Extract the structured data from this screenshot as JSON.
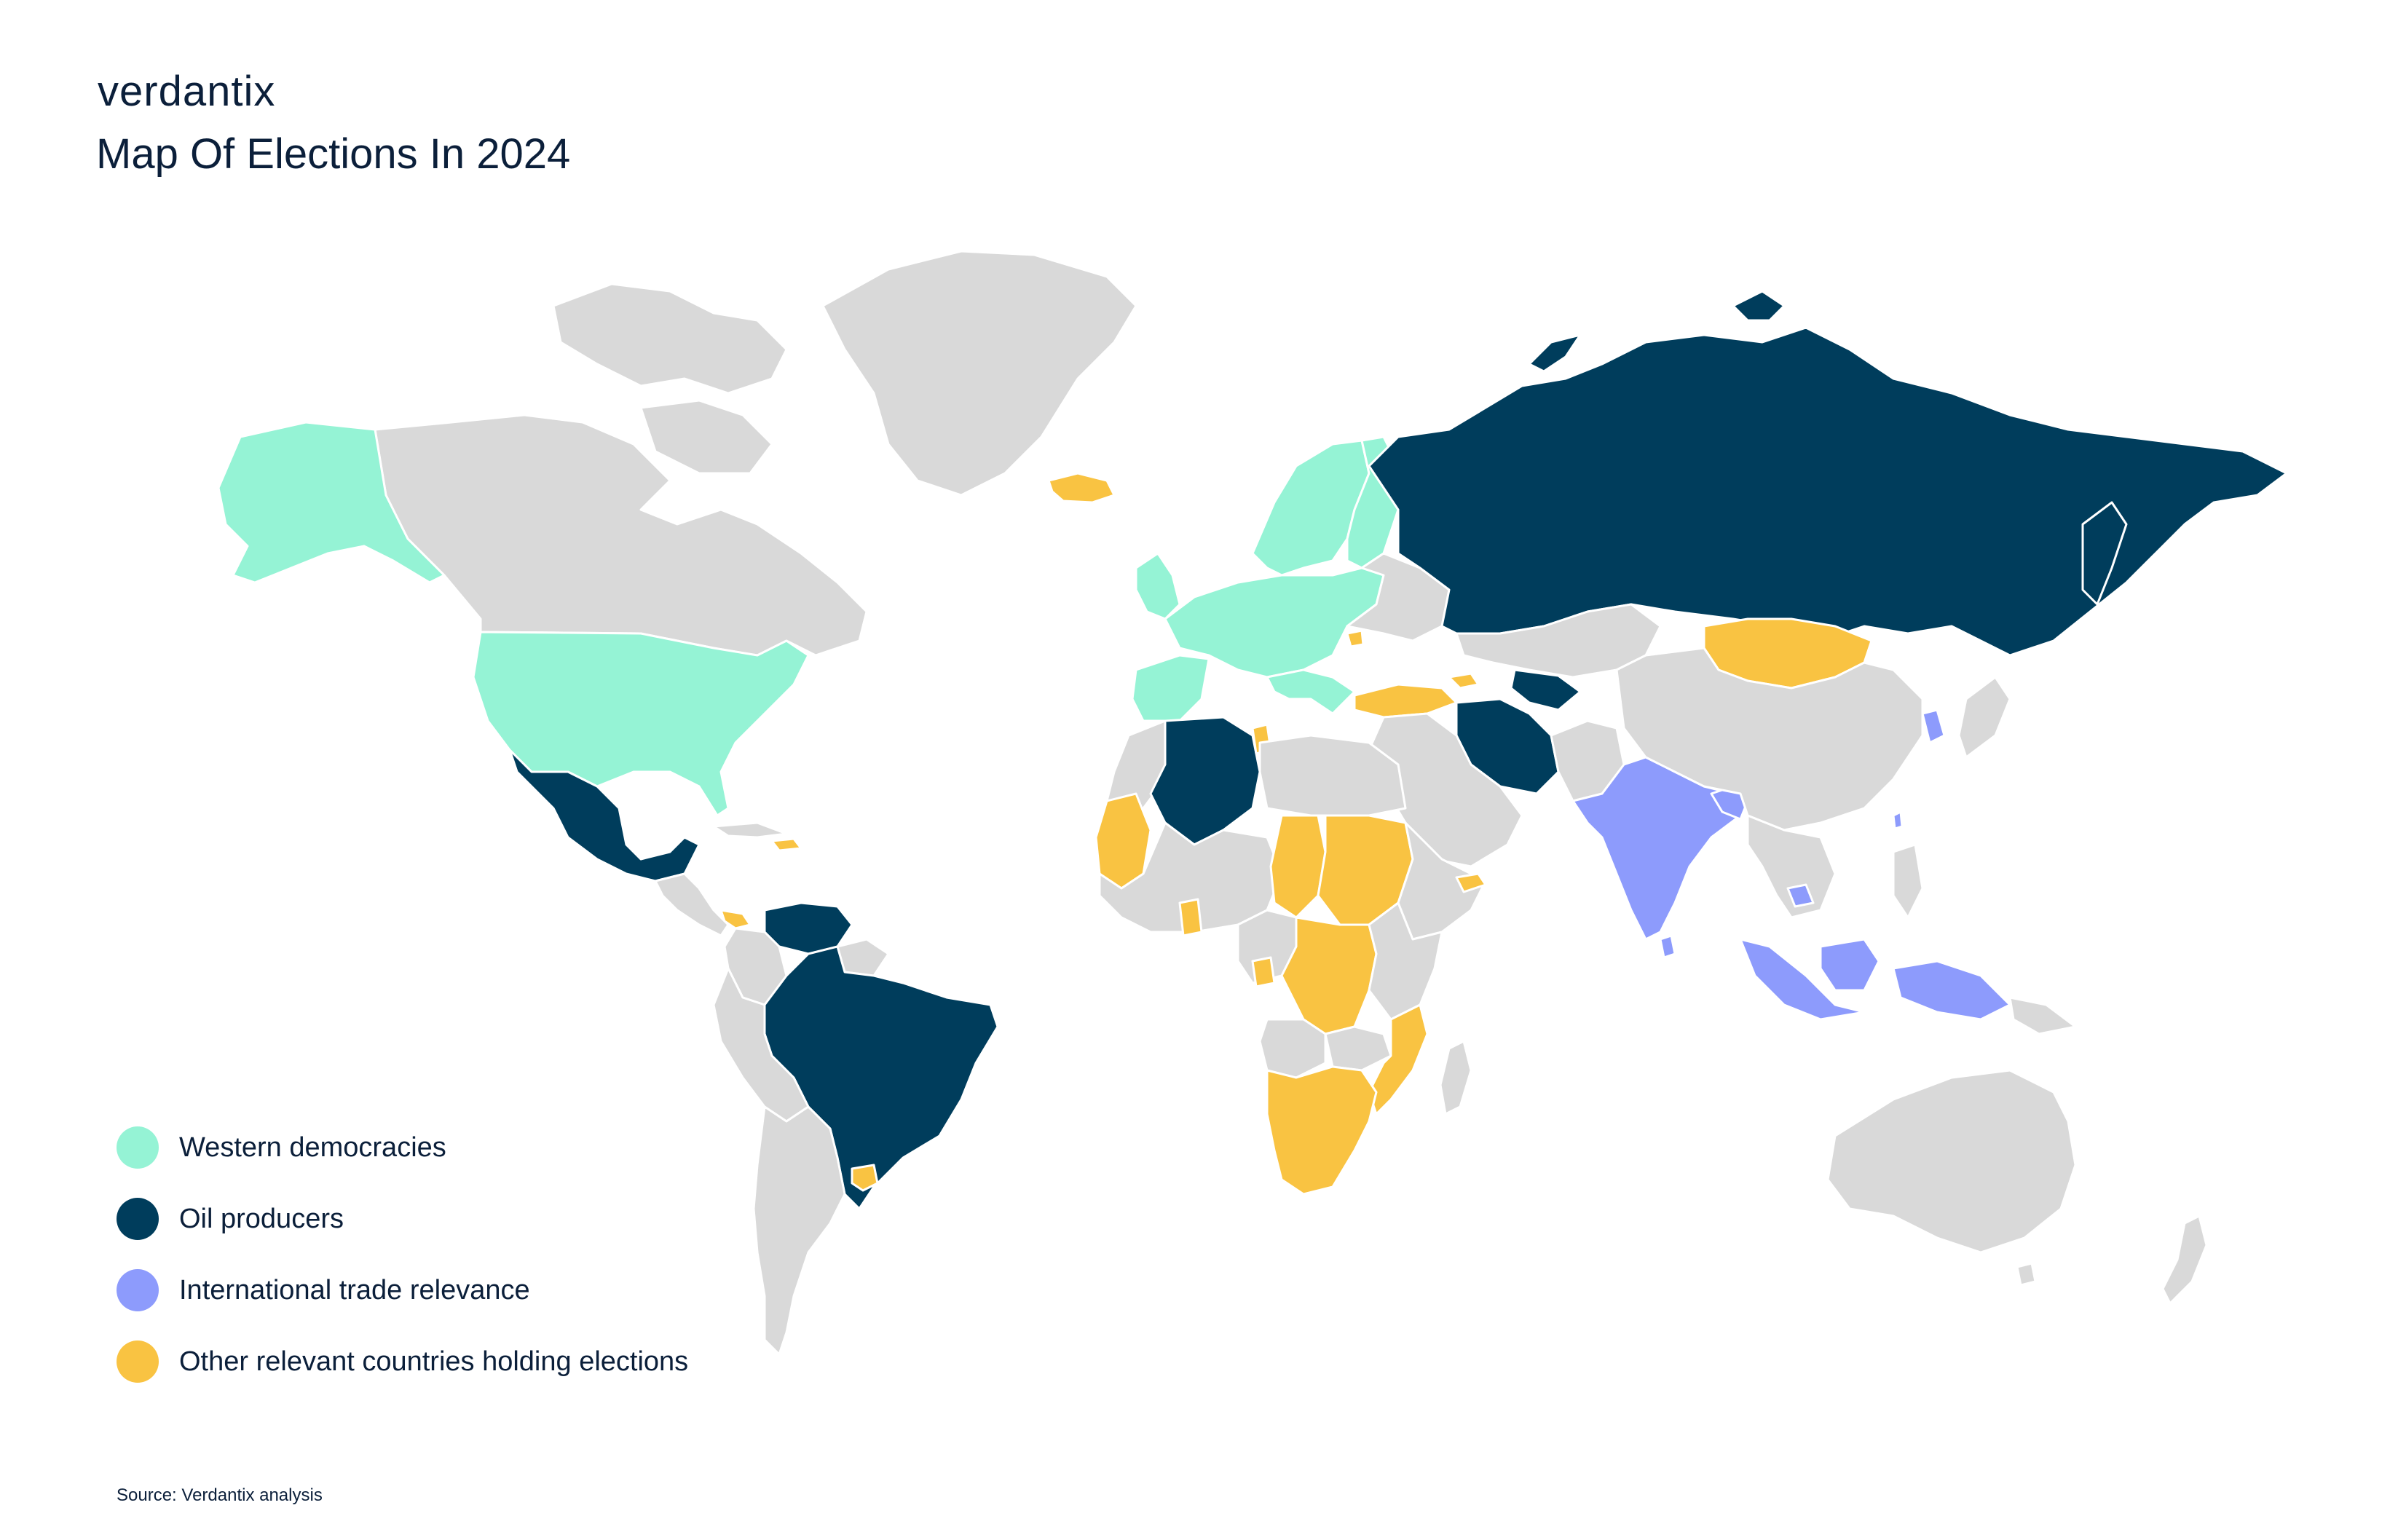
{
  "brand": {
    "logo_text": "verdantix"
  },
  "header": {
    "title": "Map Of Elections In 2024"
  },
  "colors": {
    "western": "#95f3d5",
    "oil": "#003d5c",
    "trade": "#8d9bfc",
    "other": "#f9c342",
    "none": "#d9d9d9",
    "border": "#ffffff"
  },
  "legend": {
    "items": [
      {
        "key": "western",
        "label": "Western democracies",
        "color": "#95f3d5"
      },
      {
        "key": "oil",
        "label": "Oil producers",
        "color": "#003d5c"
      },
      {
        "key": "trade",
        "label": "International trade relevance",
        "color": "#8d9bfc"
      },
      {
        "key": "other",
        "label": "Other relevant countries holding elections",
        "color": "#f9c342"
      }
    ]
  },
  "footer": {
    "source": "Source: Verdantix analysis"
  }
}
